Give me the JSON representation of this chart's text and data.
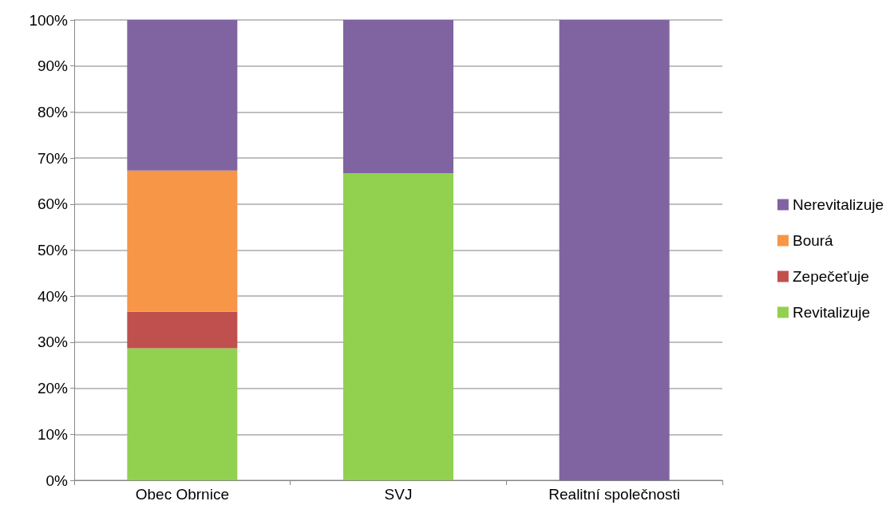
{
  "chart_data": {
    "type": "bar",
    "stacked": true,
    "categories": [
      "Obec Obrnice",
      "SVJ",
      "Realitní společnosti"
    ],
    "series": [
      {
        "name": "Revitalizuje",
        "color": "#92d050",
        "values": [
          28.7,
          66.7,
          0
        ]
      },
      {
        "name": "Zepečeťuje",
        "color": "#c0504d",
        "values": [
          7.9,
          0,
          0
        ]
      },
      {
        "name": "Bourá",
        "color": "#f79646",
        "values": [
          30.7,
          0,
          0
        ]
      },
      {
        "name": "Nerevitalizuje",
        "color": "#8064a2",
        "values": [
          32.7,
          33.3,
          100
        ]
      }
    ],
    "ylim": [
      0,
      100
    ],
    "yticks": [
      {
        "value": 0,
        "label": "0%"
      },
      {
        "value": 10,
        "label": "10%"
      },
      {
        "value": 20,
        "label": "20%"
      },
      {
        "value": 30,
        "label": "30%"
      },
      {
        "value": 40,
        "label": "40%"
      },
      {
        "value": 50,
        "label": "50%"
      },
      {
        "value": 60,
        "label": "60%"
      },
      {
        "value": 70,
        "label": "70%"
      },
      {
        "value": 80,
        "label": "80%"
      },
      {
        "value": 90,
        "label": "90%"
      },
      {
        "value": 100,
        "label": "100%"
      }
    ],
    "grid": "y",
    "legend": "right"
  }
}
